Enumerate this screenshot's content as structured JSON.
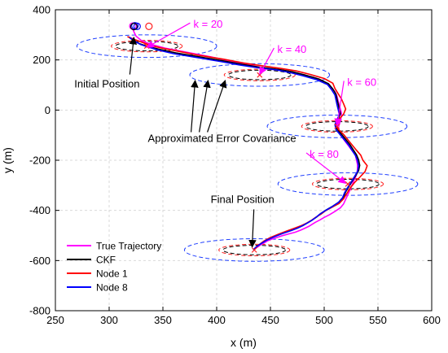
{
  "chart_data": {
    "type": "line",
    "xlabel": "x (m)",
    "ylabel": "y (m)",
    "xlim": [
      250,
      600
    ],
    "ylim": [
      -800,
      400
    ],
    "xticks": [
      250,
      300,
      350,
      400,
      450,
      500,
      550,
      600
    ],
    "yticks": [
      400,
      200,
      0,
      -200,
      -400,
      -600,
      -800
    ],
    "x_tick_labels": [
      "250",
      "300",
      "350",
      "400",
      "450",
      "500",
      "550",
      "600"
    ],
    "y_tick_labels": [
      "400",
      "200",
      "0",
      "-200",
      "-400",
      "-600",
      "-800"
    ],
    "grid": true,
    "legend_position": "bottom-left",
    "series": [
      {
        "name": "True Trajectory",
        "color": "#ff00ff",
        "x": [
          322,
          323,
          325,
          330,
          338,
          352,
          372,
          395,
          412,
          428,
          443,
          456,
          468,
          480,
          492,
          500,
          506,
          510,
          512,
          513,
          514,
          515,
          516,
          516,
          515,
          514,
          513,
          514,
          517,
          520,
          523,
          526,
          529,
          530,
          531,
          531,
          530,
          528,
          526,
          524,
          522,
          520,
          518,
          515,
          510,
          505,
          500,
          496,
          492,
          489,
          486,
          482,
          478,
          473,
          467,
          461,
          456,
          451,
          447,
          444,
          441,
          439,
          437,
          436,
          435
        ],
        "y": [
          326,
          312,
          295,
          277,
          263,
          247,
          231,
          212,
          196,
          182,
          168,
          160,
          153,
          142,
          128,
          112,
          92,
          73,
          55,
          36,
          20,
          5,
          -10,
          -25,
          -42,
          -58,
          -74,
          -92,
          -110,
          -128,
          -145,
          -162,
          -180,
          -198,
          -218,
          -238,
          -258,
          -278,
          -298,
          -318,
          -338,
          -356,
          -374,
          -390,
          -404,
          -417,
          -428,
          -438,
          -447,
          -455,
          -463,
          -471,
          -479,
          -487,
          -494,
          -501,
          -508,
          -515,
          -522,
          -530,
          -537,
          -543,
          -549,
          -553,
          -556
        ]
      },
      {
        "name": "CKF",
        "color": "#000000",
        "x": [
          318,
          322,
          328,
          335,
          346,
          362,
          383,
          405,
          423,
          441,
          458,
          470,
          482,
          495,
          504,
          508,
          511,
          512,
          513,
          514,
          515,
          513,
          511,
          512,
          516,
          520,
          524,
          527,
          530,
          532,
          533,
          532,
          529,
          526,
          523,
          520,
          518,
          514,
          508,
          502,
          497,
          493,
          489,
          485,
          481,
          476,
          470,
          462,
          454,
          447,
          442,
          438,
          436,
          435
        ],
        "y": [
          292,
          279,
          265,
          255,
          243,
          228,
          213,
          197,
          183,
          170,
          162,
          153,
          140,
          124,
          105,
          84,
          63,
          43,
          24,
          5,
          -15,
          -35,
          -55,
          -75,
          -96,
          -117,
          -138,
          -158,
          -178,
          -198,
          -220,
          -242,
          -263,
          -284,
          -305,
          -326,
          -347,
          -366,
          -383,
          -398,
          -412,
          -426,
          -438,
          -448,
          -458,
          -468,
          -478,
          -490,
          -503,
          -517,
          -530,
          -542,
          -551,
          -556
        ]
      },
      {
        "name": "Node 1",
        "color": "#ff0000",
        "x": [
          317,
          324,
          331,
          338,
          348,
          365,
          384,
          406,
          425,
          443,
          460,
          474,
          487,
          500,
          508,
          510,
          513,
          516,
          518,
          520,
          518,
          514,
          511,
          513,
          518,
          522,
          526,
          530,
          534,
          536,
          540,
          538,
          533,
          528,
          524,
          521,
          518,
          514,
          507,
          501,
          497,
          492,
          488,
          484,
          479,
          473,
          466,
          458,
          450,
          444,
          440,
          437,
          435
        ],
        "y": [
          293,
          281,
          270,
          258,
          248,
          234,
          218,
          203,
          188,
          176,
          166,
          156,
          142,
          126,
          107,
          86,
          65,
          45,
          25,
          4,
          -16,
          -36,
          -56,
          -76,
          -97,
          -118,
          -139,
          -160,
          -180,
          -200,
          -222,
          -245,
          -268,
          -290,
          -312,
          -333,
          -354,
          -372,
          -388,
          -402,
          -415,
          -428,
          -440,
          -450,
          -460,
          -470,
          -481,
          -494,
          -508,
          -522,
          -535,
          -547,
          -556
        ]
      },
      {
        "name": "Node 8",
        "color": "#0000ff",
        "x": [
          319,
          323,
          329,
          336,
          345,
          360,
          381,
          403,
          421,
          439,
          456,
          468,
          480,
          493,
          503,
          507,
          510,
          511,
          512,
          513,
          514,
          512,
          510,
          511,
          515,
          519,
          523,
          526,
          529,
          531,
          532,
          531,
          528,
          525,
          522,
          519,
          517,
          513,
          507,
          501,
          496,
          492,
          488,
          484,
          480,
          475,
          469,
          461,
          453,
          446,
          441,
          437,
          435,
          434
        ],
        "y": [
          290,
          276,
          262,
          252,
          240,
          225,
          210,
          194,
          180,
          168,
          160,
          150,
          137,
          121,
          102,
          81,
          60,
          40,
          21,
          2,
          -18,
          -38,
          -58,
          -78,
          -99,
          -120,
          -141,
          -161,
          -181,
          -201,
          -223,
          -245,
          -266,
          -287,
          -308,
          -329,
          -350,
          -369,
          -386,
          -401,
          -415,
          -429,
          -441,
          -451,
          -461,
          -471,
          -481,
          -493,
          -506,
          -520,
          -533,
          -545,
          -553,
          -558
        ]
      }
    ],
    "covariance_ellipses": [
      {
        "k": 20,
        "cx": 335,
        "cy": 255,
        "rx_outer": 65,
        "ry_outer": 45,
        "rx_inner": 33,
        "ry_inner": 23
      },
      {
        "k": 40,
        "cx": 440,
        "cy": 140,
        "rx_outer": 65,
        "ry_outer": 45,
        "rx_inner": 33,
        "ry_inner": 23
      },
      {
        "k": 60,
        "cx": 512,
        "cy": -65,
        "rx_outer": 65,
        "ry_outer": 45,
        "rx_inner": 33,
        "ry_inner": 23
      },
      {
        "k": 80,
        "cx": 522,
        "cy": -295,
        "rx_outer": 65,
        "ry_outer": 45,
        "rx_inner": 33,
        "ry_inner": 23
      },
      {
        "cx": 435,
        "cy": -558,
        "rx_outer": 65,
        "ry_outer": 45,
        "rx_inner": 33,
        "ry_inner": 23
      }
    ],
    "annotations": [
      {
        "id": "k20",
        "text": "k = 20",
        "text_x": 392,
        "text_y": 328,
        "arrow_to_x": 335,
        "arrow_to_y": 250,
        "color": "#ff00ff"
      },
      {
        "id": "k40",
        "text": "k = 40",
        "text_x": 470,
        "text_y": 228,
        "arrow_to_x": 440,
        "arrow_to_y": 143,
        "color": "#ff00ff"
      },
      {
        "id": "k60",
        "text": "k = 60",
        "text_x": 535,
        "text_y": 97,
        "arrow_to_x": 512,
        "arrow_to_y": -62,
        "color": "#ff00ff"
      },
      {
        "id": "k80",
        "text": "k = 80",
        "text_x": 500,
        "text_y": -190,
        "arrow_to_x": 520,
        "arrow_to_y": -292,
        "color": "#ff00ff"
      },
      {
        "id": "initial",
        "text": "Initial Position",
        "text_x": 298,
        "text_y": 90,
        "arrow_to_x": 323,
        "arrow_to_y": 290,
        "color": "#000000"
      },
      {
        "id": "final",
        "text": "Final Position",
        "text_x": 424,
        "text_y": -370,
        "arrow_to_x": 433,
        "arrow_to_y": -546,
        "color": "#000000"
      },
      {
        "id": "cov",
        "text": "Approximated Error Covariance",
        "text_x": 405,
        "text_y": -127,
        "color": "#000000"
      }
    ],
    "cov_arrow_targets": [
      {
        "x": 380,
        "y": 118
      },
      {
        "x": 392,
        "y": 118
      },
      {
        "x": 408,
        "y": 118
      }
    ]
  }
}
